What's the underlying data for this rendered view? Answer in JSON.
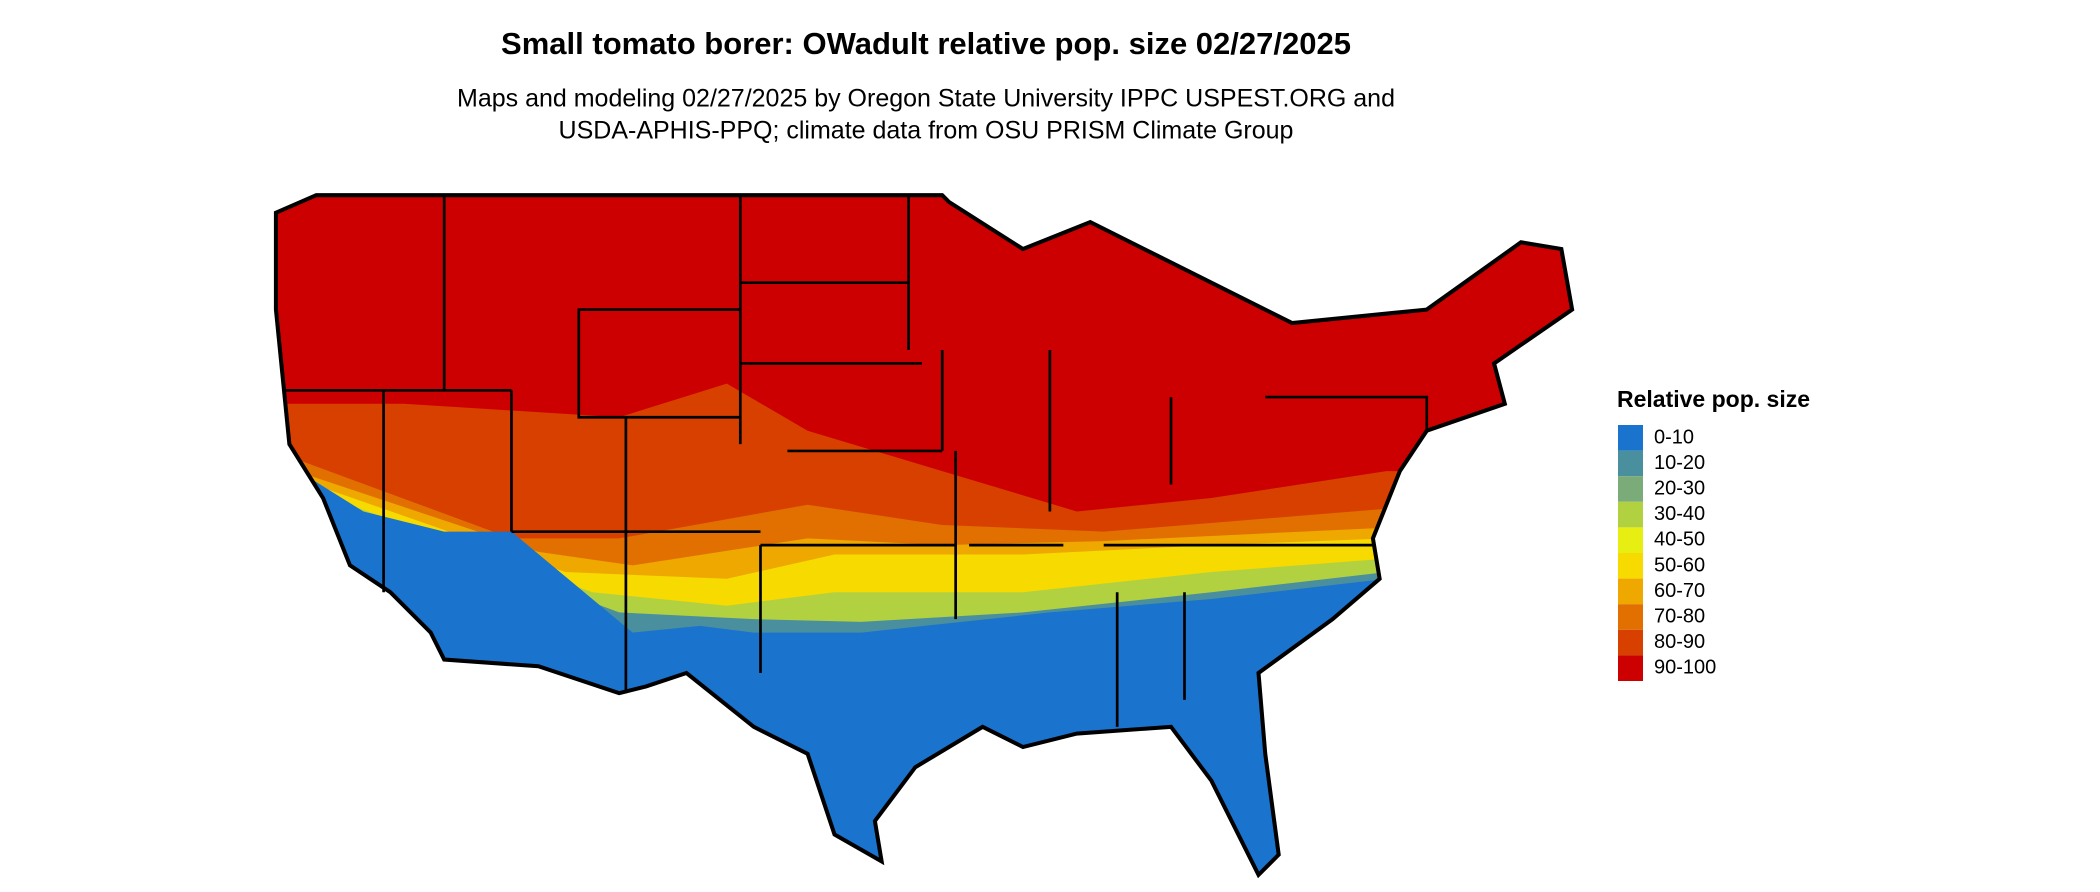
{
  "title": "Small tomato borer: OWadult relative pop. size 02/27/2025",
  "subtitle": [
    "Maps and modeling 02/27/2025 by Oregon State University IPPC USPEST.ORG and",
    "USDA-APHIS-PPQ; climate data from OSU PRISM Climate Group"
  ],
  "legend": {
    "title": "Relative pop. size",
    "items": [
      {
        "label": "0-10",
        "color": "#1a73cc"
      },
      {
        "label": "10-20",
        "color": "#4a8f9e"
      },
      {
        "label": "20-30",
        "color": "#7aab78"
      },
      {
        "label": "30-40",
        "color": "#b2d140"
      },
      {
        "label": "40-50",
        "color": "#e6ee12"
      },
      {
        "label": "50-60",
        "color": "#f6da00"
      },
      {
        "label": "60-70",
        "color": "#eea800"
      },
      {
        "label": "70-80",
        "color": "#e27000"
      },
      {
        "label": "80-90",
        "color": "#d84000"
      },
      {
        "label": "90-100",
        "color": "#cc0000"
      }
    ]
  }
}
